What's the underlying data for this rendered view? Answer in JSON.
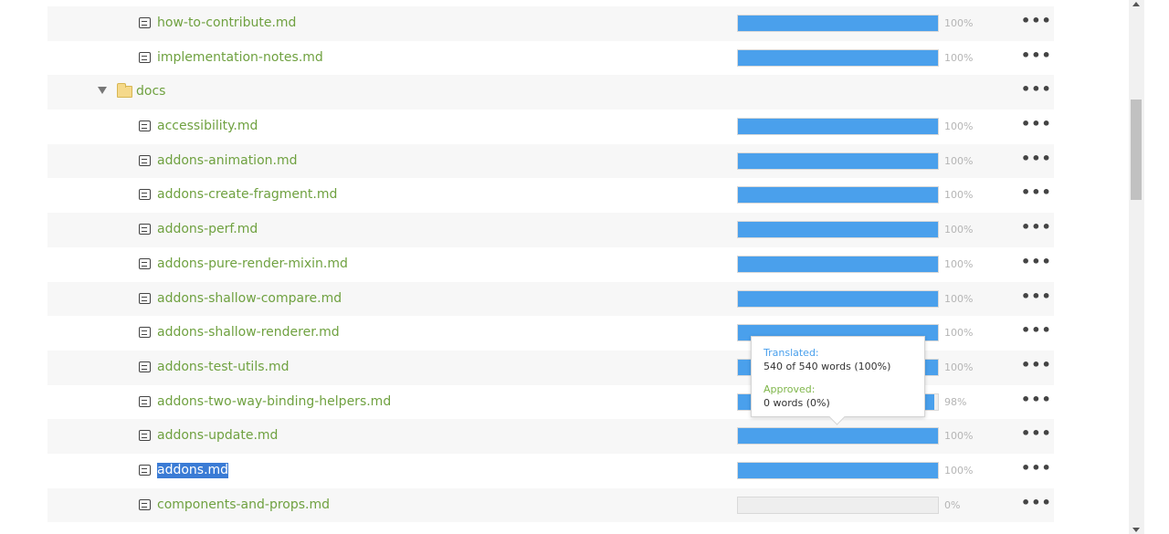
{
  "rows": [
    {
      "type": "file",
      "name": "how-to-contribute.md",
      "progress": 100,
      "pct": "100%"
    },
    {
      "type": "file",
      "name": "implementation-notes.md",
      "progress": 100,
      "pct": "100%"
    },
    {
      "type": "folder",
      "name": "docs"
    },
    {
      "type": "file",
      "name": "accessibility.md",
      "progress": 100,
      "pct": "100%"
    },
    {
      "type": "file",
      "name": "addons-animation.md",
      "progress": 100,
      "pct": "100%"
    },
    {
      "type": "file",
      "name": "addons-create-fragment.md",
      "progress": 100,
      "pct": "100%"
    },
    {
      "type": "file",
      "name": "addons-perf.md",
      "progress": 100,
      "pct": "100%"
    },
    {
      "type": "file",
      "name": "addons-pure-render-mixin.md",
      "progress": 100,
      "pct": "100%"
    },
    {
      "type": "file",
      "name": "addons-shallow-compare.md",
      "progress": 100,
      "pct": "100%"
    },
    {
      "type": "file",
      "name": "addons-shallow-renderer.md",
      "progress": 100,
      "pct": "100%"
    },
    {
      "type": "file",
      "name": "addons-test-utils.md",
      "progress": 100,
      "pct": "100%"
    },
    {
      "type": "file",
      "name": "addons-two-way-binding-helpers.md",
      "progress": 98,
      "pct": "98%"
    },
    {
      "type": "file",
      "name": "addons-update.md",
      "progress": 100,
      "pct": "100%"
    },
    {
      "type": "file",
      "name": "addons.md",
      "progress": 100,
      "pct": "100%",
      "selected": true
    },
    {
      "type": "file",
      "name": "components-and-props.md",
      "progress": 0,
      "pct": "0%"
    }
  ],
  "more_label": "•••",
  "tooltip": {
    "translated_label": "Translated:",
    "translated_value": "540 of 540 words (100%)",
    "approved_label": "Approved:",
    "approved_value": "0 words (0%)"
  },
  "colors": {
    "file_name": "#6fa140",
    "bar_fill": "#4aa0ec",
    "selection": "#3a7bd5",
    "approved": "#7fb64a"
  }
}
